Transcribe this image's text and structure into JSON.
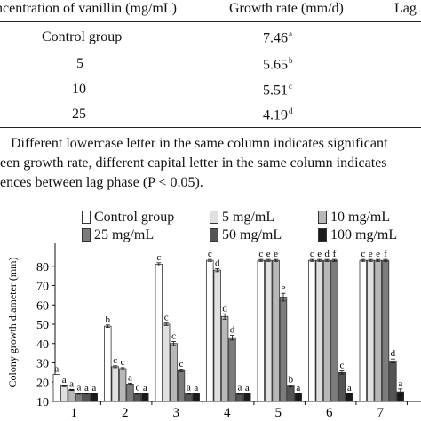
{
  "table": {
    "headers": [
      "ncentration of vanillin (mg/mL)",
      "Growth rate (mm/d)",
      "Lag"
    ],
    "rows": [
      {
        "label": "Control group",
        "value": "7.46",
        "letter": "a"
      },
      {
        "label": "5",
        "value": "5.65",
        "letter": "b"
      },
      {
        "label": "10",
        "value": "5.51",
        "letter": "c"
      },
      {
        "label": "25",
        "value": "4.19",
        "letter": "d"
      }
    ]
  },
  "note": {
    "line1": "Different lowercase letter in the same column indicates significant",
    "line2": "een growth rate, different capital letter in the same column indicates",
    "line3": "ences between lag phase (P < 0.05)."
  },
  "chart_data": {
    "type": "bar",
    "ylabel": "Colony growth diameter (mm)",
    "xlabel": "",
    "ylim": [
      10,
      90
    ],
    "yticks": [
      10,
      20,
      30,
      40,
      50,
      60,
      70,
      80
    ],
    "categories": [
      "1",
      "2",
      "3",
      "4",
      "5",
      "6",
      "7"
    ],
    "series": [
      {
        "name": "Control group",
        "color": "#ffffff",
        "values": [
          24,
          49,
          81,
          83,
          83,
          83,
          83
        ],
        "errors": [
          0,
          0.6,
          0.8,
          0.5,
          0.5,
          0.5,
          0.5
        ],
        "labels": [
          "a",
          "b",
          "c",
          "c",
          "c",
          "c",
          "c"
        ]
      },
      {
        "name": "5 mg/mL",
        "color": "#e0e0e0",
        "values": [
          18,
          28,
          50,
          78,
          83,
          83,
          83
        ],
        "errors": [
          0.3,
          0.5,
          0.6,
          0.8,
          0.5,
          0.5,
          0.5
        ],
        "labels": [
          "a",
          "c",
          "c",
          "d",
          "e",
          "e",
          "e"
        ]
      },
      {
        "name": "10 mg/mL",
        "color": "#b8b8b8",
        "values": [
          16,
          27,
          40,
          54,
          83,
          83,
          83
        ],
        "errors": [
          0.3,
          0.5,
          1.0,
          1.4,
          0.5,
          0.5,
          0.5
        ],
        "labels": [
          "a",
          "c",
          "c",
          "d",
          "e",
          "d",
          "e"
        ]
      },
      {
        "name": "25 mg/mL",
        "color": "#7c7c7c",
        "values": [
          14,
          19,
          26,
          43,
          64,
          83,
          83
        ],
        "errors": [
          0.3,
          0.5,
          0.5,
          1.2,
          2.0,
          0.5,
          0.5
        ],
        "labels": [
          "a",
          "a",
          "c",
          "d",
          "e",
          "f",
          "f"
        ]
      },
      {
        "name": "50 mg/mL",
        "color": "#545454",
        "values": [
          14,
          14,
          14,
          14,
          18,
          25,
          31
        ],
        "errors": [
          0.2,
          0.3,
          0.3,
          0.3,
          0.5,
          0.8,
          1.0
        ],
        "labels": [
          "a",
          "c",
          "a",
          "a",
          "b",
          "c",
          "d"
        ]
      },
      {
        "name": "100 mg/mL",
        "color": "#1a1a1a",
        "values": [
          14,
          14,
          14,
          14,
          14,
          14,
          15
        ],
        "errors": [
          0.2,
          0.2,
          0.2,
          0.2,
          0.2,
          0.2,
          1.5
        ],
        "labels": [
          "a",
          "a",
          "a",
          "a",
          "a",
          "a",
          "a"
        ]
      }
    ],
    "legend": "top"
  }
}
